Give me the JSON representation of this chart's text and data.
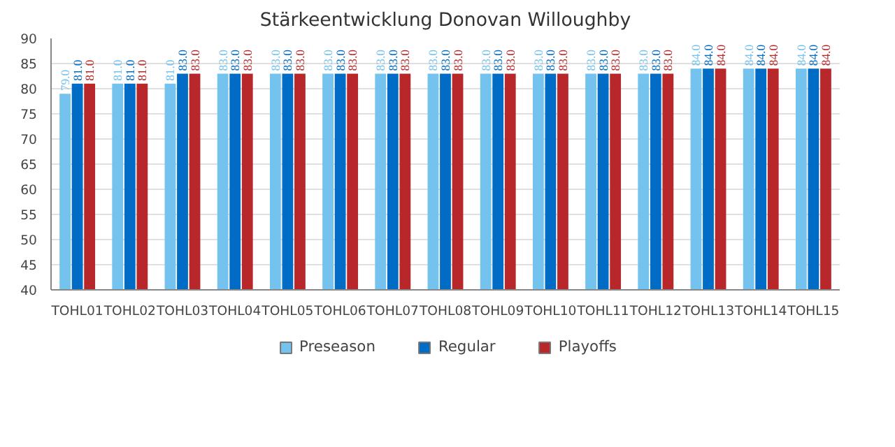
{
  "chart_data": {
    "type": "bar",
    "title": "Stärkeentwicklung Donovan Willoughby",
    "categories": [
      "TOHL01",
      "TOHL02",
      "TOHL03",
      "TOHL04",
      "TOHL05",
      "TOHL06",
      "TOHL07",
      "TOHL08",
      "TOHL09",
      "TOHL10",
      "TOHL11",
      "TOHL12",
      "TOHL13",
      "TOHL14",
      "TOHL15"
    ],
    "series": [
      {
        "name": "Preseason",
        "color": "#74c2ee",
        "values": [
          79,
          81,
          81,
          83,
          83,
          83,
          83,
          83,
          83,
          83,
          83,
          83,
          84,
          84,
          84
        ],
        "value_labels": [
          "79.0",
          "81.0",
          "81.0",
          "83.0",
          "83.0",
          "83.0",
          "83.0",
          "83.0",
          "83.0",
          "83.0",
          "83.0",
          "83.0",
          "84.0",
          "84.0",
          "84.0"
        ]
      },
      {
        "name": "Regular",
        "color": "#006cc6",
        "values": [
          81,
          81,
          83,
          83,
          83,
          83,
          83,
          83,
          83,
          83,
          83,
          83,
          84,
          84,
          84
        ],
        "value_labels": [
          "81.0",
          "81.0",
          "83.0",
          "83.0",
          "83.0",
          "83.0",
          "83.0",
          "83.0",
          "83.0",
          "83.0",
          "83.0",
          "83.0",
          "84.0",
          "84.0",
          "84.0"
        ]
      },
      {
        "name": "Playoffs",
        "color": "#b8282a",
        "values": [
          81,
          81,
          83,
          83,
          83,
          83,
          83,
          83,
          83,
          83,
          83,
          83,
          84,
          84,
          84
        ],
        "value_labels": [
          "81.0",
          "81.0",
          "83.0",
          "83.0",
          "83.0",
          "83.0",
          "83.0",
          "83.0",
          "83.0",
          "83.0",
          "83.0",
          "83.0",
          "84.0",
          "84.0",
          "84.0"
        ]
      }
    ],
    "ylim": [
      40,
      90
    ],
    "yticks": [
      40,
      45,
      50,
      55,
      60,
      65,
      70,
      75,
      80,
      85,
      90
    ],
    "grid": "y",
    "legend": "bottom"
  }
}
